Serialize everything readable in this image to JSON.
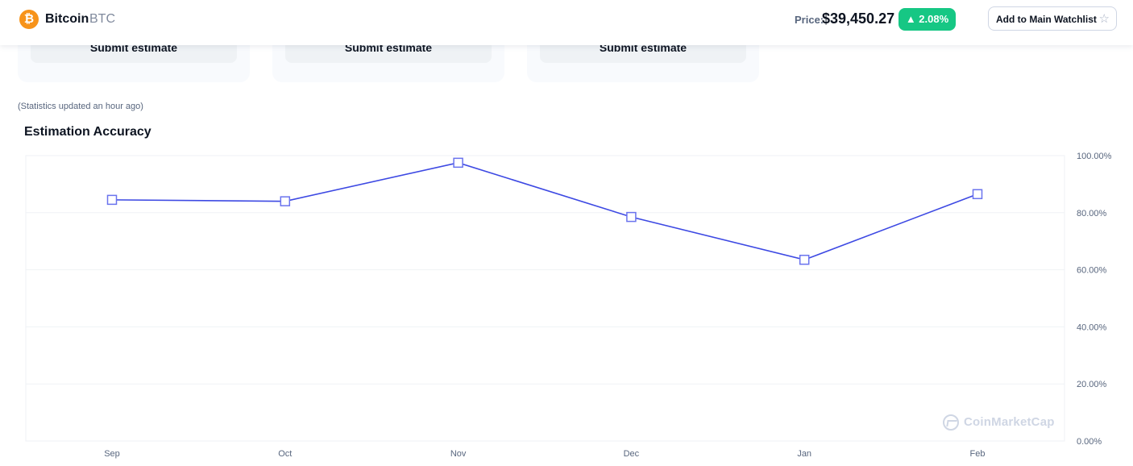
{
  "header": {
    "coin_icon_glyph": "₿",
    "coin_name": "Bitcoin",
    "coin_symbol": "BTC",
    "price_label": "Price:",
    "price_value": "$39,450.27",
    "change": "▲ 2.08%",
    "change_color": "#16c784",
    "watchlist_label": "Add to Main Watchlist",
    "star_icon": "☆"
  },
  "cards": [
    {
      "button_label": "Submit estimate"
    },
    {
      "button_label": "Submit estimate"
    },
    {
      "button_label": "Submit estimate"
    }
  ],
  "stats_note": "(Statistics updated an hour ago)",
  "section_title": "Estimation Accuracy",
  "watermark": "CoinMarketCap",
  "chart_data": {
    "type": "line",
    "title": "",
    "xlabel": "",
    "ylabel": "",
    "categories": [
      "Sep",
      "Oct",
      "Nov",
      "Dec",
      "Jan",
      "Feb"
    ],
    "series": [
      {
        "values": [
          84.5,
          84,
          97.5,
          78.5,
          63.5,
          86.5
        ],
        "color": "#3d49e3",
        "marker": "square"
      }
    ],
    "ylim": [
      0,
      100
    ],
    "yticks": [
      "0.00%",
      "20.00%",
      "40.00%",
      "60.00%",
      "80.00%",
      "100.00%"
    ],
    "ytick_values": [
      0,
      20,
      40,
      60,
      80,
      100
    ],
    "y_axis_side": "right",
    "grid": true
  }
}
